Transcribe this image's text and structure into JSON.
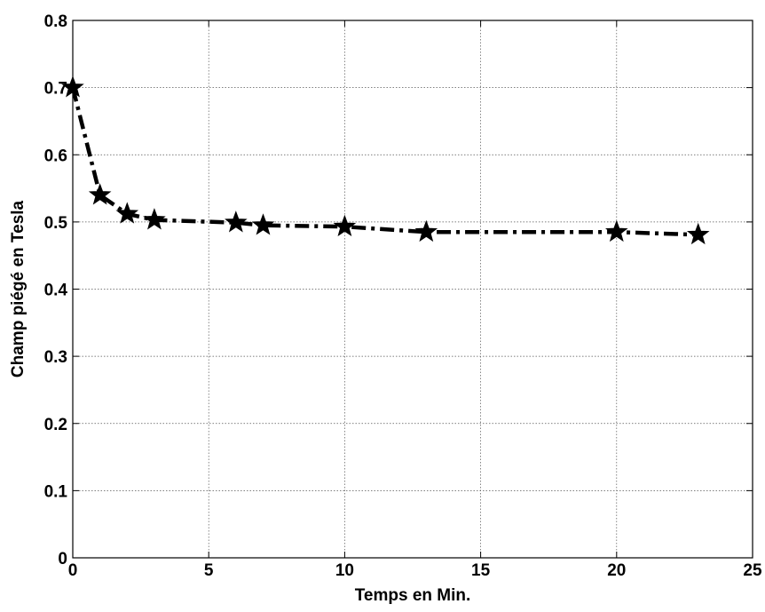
{
  "chart_data": {
    "type": "line",
    "title": "",
    "xlabel": "Temps en Min.",
    "ylabel": "Champ piégé en Tesla",
    "xlim": [
      0,
      25
    ],
    "ylim": [
      0,
      0.8
    ],
    "x_ticks": [
      0,
      5,
      10,
      15,
      20,
      25
    ],
    "y_ticks": [
      0,
      0.1,
      0.2,
      0.3,
      0.4,
      0.5,
      0.6,
      0.7,
      0.8
    ],
    "x_tick_labels": [
      "0",
      "5",
      "10",
      "15",
      "20",
      "25"
    ],
    "y_tick_labels": [
      "0",
      "0.1",
      "0.2",
      "0.3",
      "0.4",
      "0.5",
      "0.6",
      "0.7",
      "0.8"
    ],
    "grid": true,
    "legend": "none",
    "series": [
      {
        "x": [
          0,
          1,
          2,
          3,
          6,
          7,
          10,
          13,
          20,
          23
        ],
        "y": [
          0.7,
          0.54,
          0.512,
          0.503,
          0.499,
          0.495,
          0.493,
          0.485,
          0.485,
          0.481
        ],
        "line_style": "dash-dot",
        "marker": "star",
        "color": "#000000"
      }
    ]
  }
}
